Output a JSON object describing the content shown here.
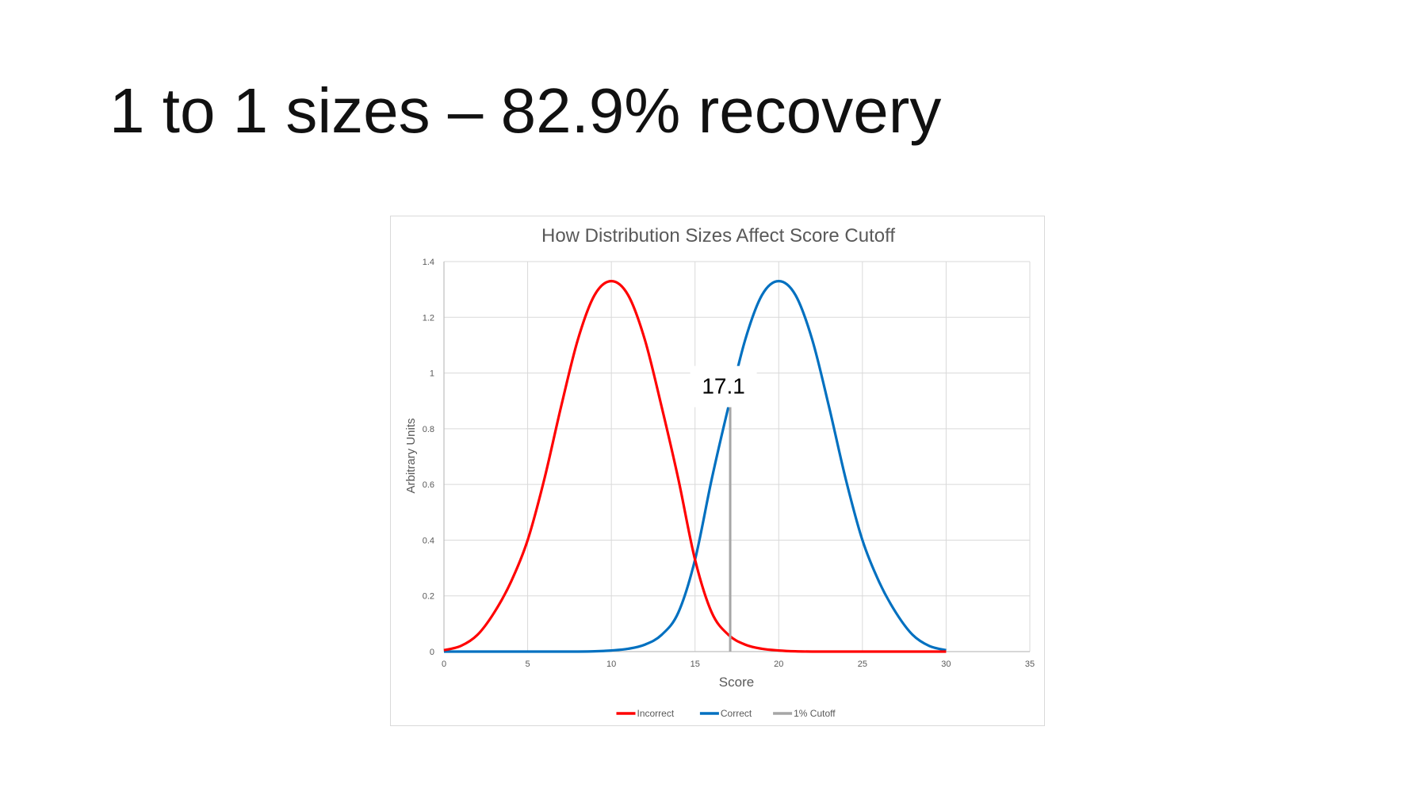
{
  "slide": {
    "title": "1 to 1 sizes – 82.9% recovery"
  },
  "chart_data": {
    "type": "line",
    "title": "How Distribution Sizes Affect Score Cutoff",
    "xlabel": "Score",
    "ylabel": "Arbitrary Units",
    "xlim": [
      0,
      35
    ],
    "ylim": [
      0,
      1.4
    ],
    "xticks": [
      0,
      5,
      10,
      15,
      20,
      25,
      30,
      35
    ],
    "yticks": [
      0,
      0.2,
      0.4,
      0.6,
      0.8,
      1,
      1.2,
      1.4
    ],
    "grid": true,
    "legend_position": "bottom",
    "series": [
      {
        "name": "Incorrect",
        "color": "#ff0000",
        "x": [
          0,
          1,
          2,
          3,
          4,
          5,
          6,
          7,
          8,
          9,
          10,
          11,
          12,
          13,
          14,
          15,
          16,
          17,
          18,
          19,
          20,
          21,
          22,
          23,
          24,
          25,
          26,
          27,
          28,
          29,
          30
        ],
        "y": [
          0.005,
          0.02,
          0.06,
          0.14,
          0.25,
          0.4,
          0.62,
          0.88,
          1.12,
          1.28,
          1.33,
          1.28,
          1.12,
          0.88,
          0.62,
          0.33,
          0.14,
          0.06,
          0.025,
          0.01,
          0.004,
          0.001,
          0,
          0,
          0,
          0,
          0,
          0,
          0,
          0,
          0
        ]
      },
      {
        "name": "Correct",
        "color": "#0070c0",
        "x": [
          0,
          1,
          2,
          3,
          4,
          5,
          6,
          7,
          8,
          9,
          10,
          11,
          12,
          13,
          14,
          15,
          16,
          17,
          18,
          19,
          20,
          21,
          22,
          23,
          24,
          25,
          26,
          27,
          28,
          29,
          30
        ],
        "y": [
          0,
          0,
          0,
          0,
          0,
          0,
          0,
          0,
          0,
          0.001,
          0.004,
          0.01,
          0.025,
          0.06,
          0.14,
          0.33,
          0.62,
          0.88,
          1.12,
          1.28,
          1.33,
          1.28,
          1.12,
          0.88,
          0.62,
          0.4,
          0.25,
          0.14,
          0.06,
          0.02,
          0.005
        ]
      },
      {
        "name": "1% Cutoff",
        "color": "#a6a6a6",
        "x": [
          17.1,
          17.1
        ],
        "y": [
          0,
          0.88
        ]
      }
    ],
    "annotations": [
      {
        "text": "17.1",
        "x": 16.7,
        "y": 0.94
      }
    ]
  }
}
